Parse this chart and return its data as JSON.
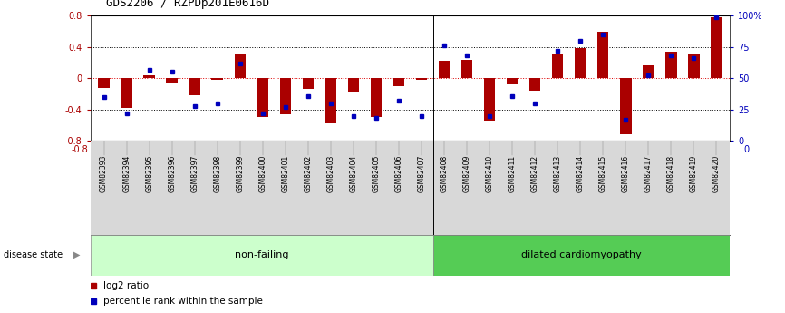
{
  "title": "GDS2206 / RZPDp201E0616D",
  "samples": [
    "GSM82393",
    "GSM82394",
    "GSM82395",
    "GSM82396",
    "GSM82397",
    "GSM82398",
    "GSM82399",
    "GSM82400",
    "GSM82401",
    "GSM82402",
    "GSM82403",
    "GSM82404",
    "GSM82405",
    "GSM82406",
    "GSM82407",
    "GSM82408",
    "GSM82409",
    "GSM82410",
    "GSM82411",
    "GSM82412",
    "GSM82413",
    "GSM82414",
    "GSM82415",
    "GSM82416",
    "GSM82417",
    "GSM82418",
    "GSM82419",
    "GSM82420"
  ],
  "log2_ratio": [
    -0.12,
    -0.38,
    0.04,
    -0.05,
    -0.22,
    -0.02,
    0.32,
    -0.5,
    -0.46,
    -0.14,
    -0.58,
    -0.17,
    -0.5,
    -0.1,
    -0.02,
    0.22,
    0.24,
    -0.54,
    -0.08,
    -0.16,
    0.3,
    0.38,
    0.6,
    -0.72,
    0.16,
    0.34,
    0.3,
    0.78
  ],
  "percentile": [
    35,
    22,
    57,
    55,
    28,
    30,
    62,
    22,
    27,
    36,
    30,
    20,
    18,
    32,
    20,
    76,
    68,
    20,
    36,
    30,
    72,
    80,
    85,
    17,
    52,
    68,
    66,
    99
  ],
  "non_failing_count": 15,
  "dilated_count": 13,
  "ylim": [
    -0.8,
    0.8
  ],
  "bar_color": "#aa0000",
  "dot_color": "#0000bb",
  "bg_color": "#ffffff",
  "dotted_line_color": "#000000",
  "zero_line_color": "#dd0000",
  "non_failing_color": "#ccffcc",
  "dilated_color": "#55cc55",
  "disease_state_label": "disease state",
  "non_failing_label": "non-failing",
  "dilated_label": "dilated cardiomyopathy",
  "legend_log2": "log2 ratio",
  "legend_pct": "percentile rank within the sample"
}
